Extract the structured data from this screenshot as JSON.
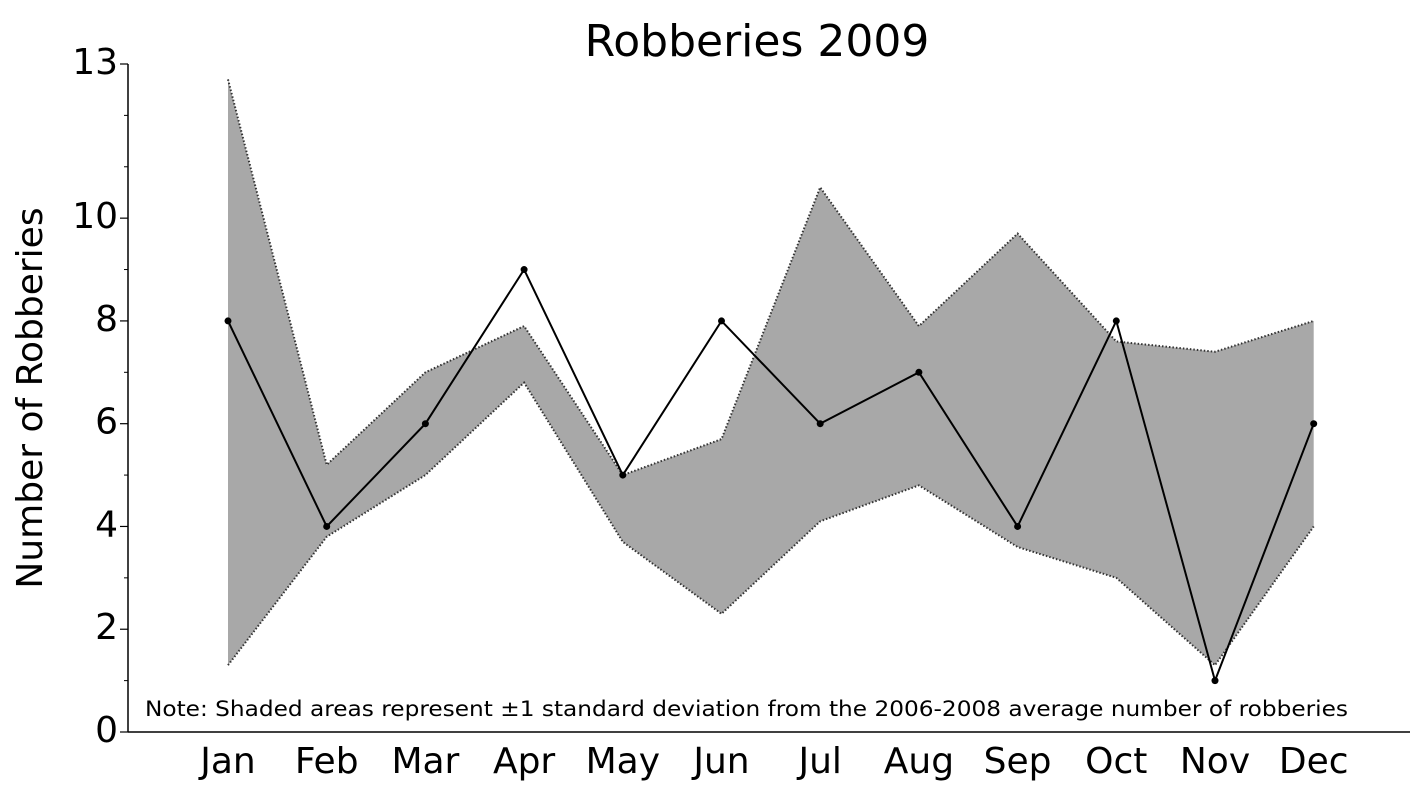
{
  "chart_data": {
    "type": "line",
    "title": "Robberies 2009",
    "ylabel": "Number of Robberies",
    "note": "Note: Shaded areas represent ±1 standard deviation from the 2006-2008 average number of robberies",
    "categories": [
      "Jan",
      "Feb",
      "Mar",
      "Apr",
      "May",
      "Jun",
      "Jul",
      "Aug",
      "Sep",
      "Oct",
      "Nov",
      "Dec"
    ],
    "values": [
      8,
      4,
      6,
      9,
      5,
      8,
      6,
      7,
      4,
      8,
      1,
      6
    ],
    "color": "#000000",
    "band": {
      "upper": [
        12.7,
        5.2,
        7.0,
        7.9,
        5.0,
        5.7,
        10.6,
        7.9,
        9.7,
        7.6,
        7.4,
        8.0
      ],
      "lower": [
        1.3,
        3.8,
        5.0,
        6.8,
        3.7,
        2.3,
        4.1,
        4.8,
        3.6,
        3.0,
        1.3,
        4.0
      ],
      "color": "#a8a8a8"
    },
    "ylim": [
      0,
      13
    ],
    "yticks": [
      0,
      2,
      4,
      6,
      8,
      10,
      13
    ],
    "yminorticks": [
      1,
      3,
      5,
      7,
      9,
      11,
      12
    ]
  }
}
